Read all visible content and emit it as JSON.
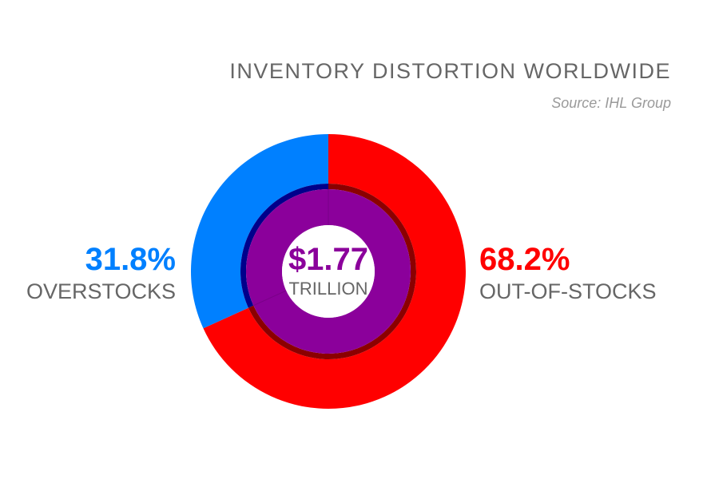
{
  "chart_data": {
    "type": "pie",
    "title": "INVENTORY DISTORTION WORLDWIDE",
    "subtitle": "Source: IHL Group",
    "total": {
      "value": "$1.77",
      "unit": "TRILLION"
    },
    "slices": [
      {
        "label": "OUT-OF-STOCKS",
        "value": 68.2,
        "display": "68.2%",
        "color": "#ff0000",
        "inner_color": "#8b0000"
      },
      {
        "label": "OVERSTOCKS",
        "value": 31.8,
        "display": "31.8%",
        "color": "#0080ff",
        "inner_color": "#00008b"
      }
    ],
    "center_color": "#8b009b"
  }
}
